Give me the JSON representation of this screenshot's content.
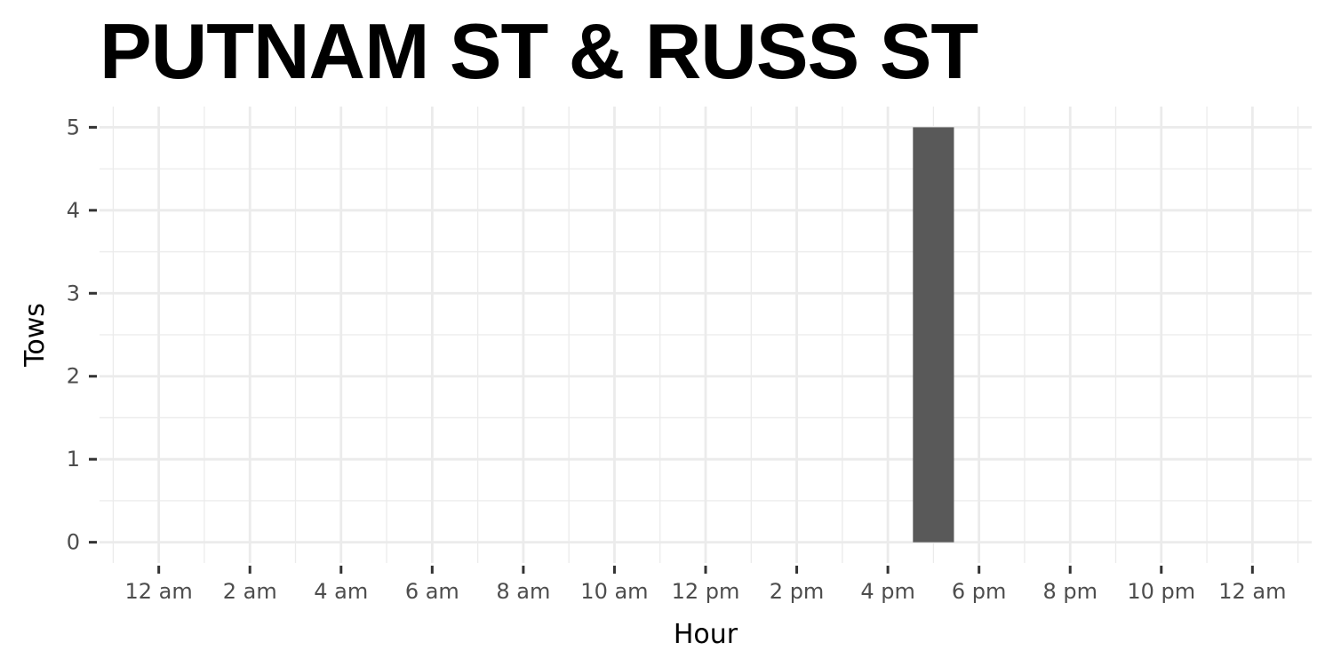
{
  "chart_data": {
    "type": "bar",
    "title": "PUTNAM ST & RUSS ST",
    "xlabel": "Hour",
    "ylabel": "Tows",
    "x_ticks": [
      "12 am",
      "2 am",
      "4 am",
      "6 am",
      "8 am",
      "10 am",
      "12 pm",
      "2 pm",
      "4 pm",
      "6 pm",
      "8 pm",
      "10 pm",
      "12 am"
    ],
    "x_tick_hours": [
      0,
      2,
      4,
      6,
      8,
      10,
      12,
      14,
      16,
      18,
      20,
      22,
      24
    ],
    "xlim": [
      -1.3,
      25.3
    ],
    "y_ticks": [
      0,
      1,
      2,
      3,
      4,
      5
    ],
    "ylim": [
      -0.25,
      5.25
    ],
    "bars": [
      {
        "hour": 17,
        "value": 5
      }
    ],
    "bar_color": "#595959",
    "grid": true,
    "grid_color": "#ebebeb",
    "legend": "none"
  }
}
